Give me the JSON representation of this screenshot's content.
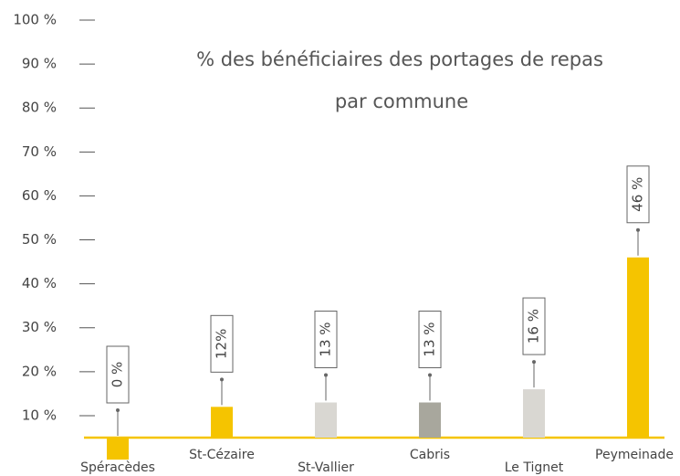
{
  "chart_data": {
    "type": "bar",
    "title": [
      "% des bénéficiaires des portages de repas",
      "par commune"
    ],
    "categories": [
      "Spéracèdes",
      "St-Cézaire",
      "St-Vallier",
      "Cabris",
      "Le Tignet",
      "Peymeinade"
    ],
    "values": [
      0,
      12,
      13,
      13,
      16,
      46
    ],
    "value_labels": [
      "0 %",
      "12%",
      "13 %",
      "13 %",
      "16 %",
      "46 %"
    ],
    "colors": [
      "#f5c400",
      "#f5c400",
      "#d9d7d2",
      "#a8a79d",
      "#d9d7d2",
      "#f5c400"
    ],
    "ylim": [
      5,
      100
    ],
    "yticks": [
      {
        "value": 10,
        "label": "10 %"
      },
      {
        "value": 20,
        "label": "20 %"
      },
      {
        "value": 30,
        "label": "30 %"
      },
      {
        "value": 40,
        "label": "40 %"
      },
      {
        "value": 50,
        "label": "50 %"
      },
      {
        "value": 60,
        "label": "60 %"
      },
      {
        "value": 70,
        "label": "70 %"
      },
      {
        "value": 80,
        "label": "80 %"
      },
      {
        "value": 90,
        "label": "90 %"
      },
      {
        "value": 100,
        "label": "100 %"
      }
    ]
  }
}
